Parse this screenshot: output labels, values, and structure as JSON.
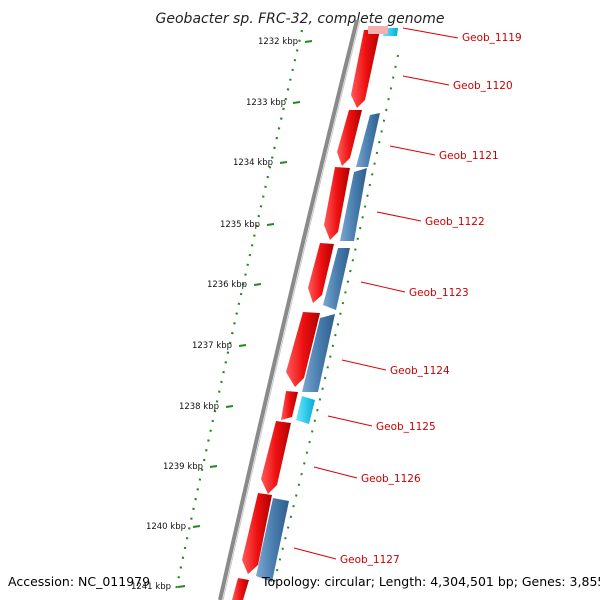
{
  "title": "Geobacter sp. FRC-32, complete genome",
  "footer": {
    "accession": "Accession: NC_011979",
    "topology": "Topology: circular; Length: 4,304,501 bp; Genes: 3,855"
  },
  "scale_ticks": [
    "1232 kbp",
    "1233 kbp",
    "1234 kbp",
    "1235 kbp",
    "1236 kbp",
    "1237 kbp",
    "1238 kbp",
    "1239 kbp",
    "1240 kbp",
    "1241 kbp"
  ],
  "genes": [
    {
      "label": "Geob_1119"
    },
    {
      "label": "Geob_1120"
    },
    {
      "label": "Geob_1121"
    },
    {
      "label": "Geob_1122"
    },
    {
      "label": "Geob_1123"
    },
    {
      "label": "Geob_1124"
    },
    {
      "label": "Geob_1125"
    },
    {
      "label": "Geob_1126"
    },
    {
      "label": "Geob_1127"
    }
  ],
  "colors": {
    "forward_gene": "#ee1111",
    "reverse_gene": "#4a7fb0",
    "rna_gene": "#17c7e6",
    "backbone": "#8a8a8a",
    "scale_ticks": "#1e8c1e",
    "gene_labels": "#cc0000"
  }
}
